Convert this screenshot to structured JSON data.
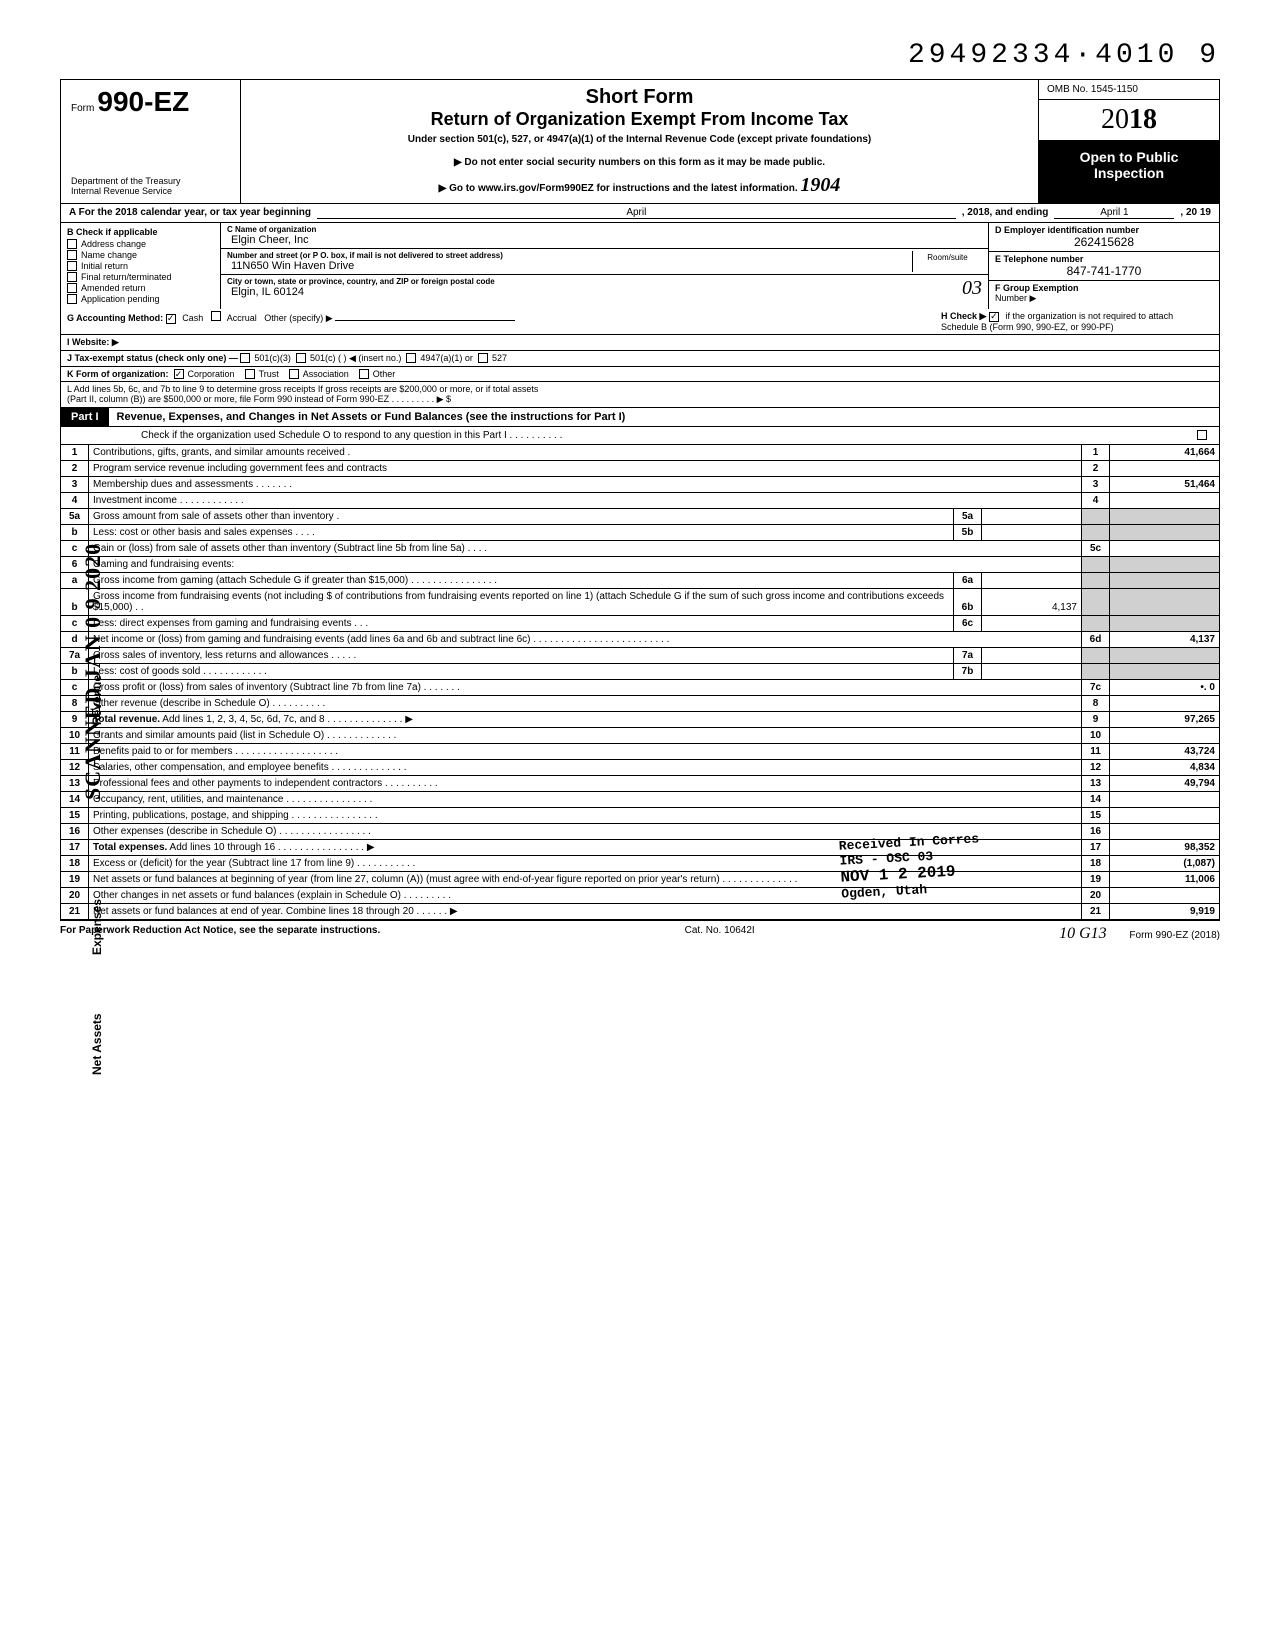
{
  "doc_id": "29492334·4010 9",
  "form": {
    "prefix": "Form",
    "number": "990-EZ",
    "title_line1": "Short Form",
    "title_line2": "Return of Organization Exempt From Income Tax",
    "subtitle": "Under section 501(c), 527, or 4947(a)(1) of the Internal Revenue Code (except private foundations)",
    "notice1": "Do not enter social security numbers on this form as it may be made public.",
    "notice2": "Go to www.irs.gov/Form990EZ for instructions and the latest information.",
    "dept1": "Department of the Treasury",
    "dept2": "Internal Revenue Service",
    "omb": "OMB No. 1545-1150",
    "year_prefix": "20",
    "year_bold": "18",
    "open1": "Open to Public",
    "open2": "Inspection",
    "hw_1904": "1904"
  },
  "row_a": {
    "label": "A For the 2018 calendar year, or tax year beginning",
    "begin": "April",
    "mid": ", 2018, and ending",
    "end": "April 1",
    "tail": ", 20   19"
  },
  "col_b": {
    "hdr": "B Check if applicable",
    "items": [
      "Address change",
      "Name change",
      "Initial return",
      "Final return/terminated",
      "Amended return",
      "Application pending"
    ]
  },
  "col_c": {
    "name_lbl": "C Name of organization",
    "name": "Elgin Cheer, Inc",
    "addr_lbl": "Number and street (or P O. box, if mail is not delivered to street address)",
    "addr": "11N650 Win Haven Drive",
    "room_lbl": "Room/suite",
    "city_lbl": "City or town, state or province, country, and ZIP or foreign postal code",
    "city": "Elgin, IL 60124",
    "hw_03": "03"
  },
  "col_d": {
    "lbl": "D Employer identification number",
    "val": "262415628"
  },
  "col_e": {
    "lbl": "E Telephone number",
    "val": "847-741-1770"
  },
  "col_f": {
    "lbl": "F Group Exemption",
    "lbl2": "Number ▶"
  },
  "row_g": {
    "lbl": "G Accounting Method:",
    "cash": "Cash",
    "accrual": "Accrual",
    "other": "Other (specify) ▶"
  },
  "row_h": {
    "lbl": "H Check ▶",
    "txt": "if the organization is not required to attach Schedule B (Form 990, 990-EZ, or 990-PF)"
  },
  "row_i": {
    "lbl": "I Website: ▶"
  },
  "row_j": {
    "lbl": "J Tax-exempt status (check only one) —",
    "o1": "501(c)(3)",
    "o2": "501(c) (      ) ◀ (insert no.)",
    "o3": "4947(a)(1) or",
    "o4": "527"
  },
  "row_k": {
    "lbl": "K Form of organization:",
    "o1": "Corporation",
    "o2": "Trust",
    "o3": "Association",
    "o4": "Other"
  },
  "row_l": {
    "l1": "L Add lines 5b, 6c, and 7b to line 9 to determine gross receipts  If gross receipts are $200,000 or more, or if total assets",
    "l2": "(Part II, column (B)) are $500,000 or more, file Form 990 instead of Form 990-EZ .   .   .   .   .   .   .   .   .   ▶   $"
  },
  "part1": {
    "lbl": "Part I",
    "title": "Revenue, Expenses, and Changes in Net Assets or Fund Balances (see the instructions for Part I)",
    "sub": "Check if the organization used Schedule O to respond to any question in this Part I .   .   .   .   .   .   .   .   .   ."
  },
  "side": {
    "revenue": "Revenue",
    "expenses": "Expenses",
    "netassets": "Net Assets",
    "scanned": "SCANNED JAN 0 9 2020"
  },
  "stamp": {
    "l1": "Received In Corres",
    "l2": "IRS - OSC 03",
    "l3": "NOV 1 2 2019",
    "l4": "Ogden, Utah"
  },
  "lines": [
    {
      "n": "1",
      "d": "Contributions, gifts, grants, and similar amounts received .",
      "rn": "1",
      "v": "41,664"
    },
    {
      "n": "2",
      "d": "Program service revenue including government fees and contracts",
      "rn": "2",
      "v": ""
    },
    {
      "n": "3",
      "d": "Membership dues and assessments .   .   .   .   .   .   .",
      "rn": "3",
      "v": "51,464"
    },
    {
      "n": "4",
      "d": "Investment income   .   .   .   .   .   .   .   .   .   .   .   .",
      "rn": "4",
      "v": ""
    },
    {
      "n": "5a",
      "d": "Gross amount from sale of assets other than inventory   .",
      "sn": "5a",
      "sv": ""
    },
    {
      "n": "b",
      "d": "Less: cost or other basis and sales expenses .   .   .   .",
      "sn": "5b",
      "sv": ""
    },
    {
      "n": "c",
      "d": "Gain or (loss) from sale of assets other than inventory (Subtract line 5b from line 5a) .   .   .   .",
      "rn": "5c",
      "v": ""
    },
    {
      "n": "6",
      "d": "Gaming and fundraising events:",
      "nobox": true
    },
    {
      "n": "a",
      "d": "Gross income from gaming (attach Schedule G if greater than $15,000) .   .   .   .   .   .   .   .   .   .   .   .   .   .   .   .",
      "sn": "6a",
      "sv": ""
    },
    {
      "n": "b",
      "d": "Gross income from fundraising events (not including  $                       of contributions from fundraising events reported on line 1) (attach Schedule G if the sum of such gross income and contributions exceeds $15,000) .   .",
      "sn": "6b",
      "sv": "4,137"
    },
    {
      "n": "c",
      "d": "Less: direct expenses from gaming and fundraising events   .   .   .",
      "sn": "6c",
      "sv": ""
    },
    {
      "n": "d",
      "d": "Net income or (loss) from gaming and fundraising events (add lines 6a and 6b and subtract line 6c)   .   .   .   .   .   .   .   .   .   .   .   .   .   .   .   .   .   .   .   .   .   .   .   .   .",
      "rn": "6d",
      "v": "4,137"
    },
    {
      "n": "7a",
      "d": "Gross sales of inventory, less returns and allowances  .   .   .   .   .",
      "sn": "7a",
      "sv": ""
    },
    {
      "n": "b",
      "d": "Less: cost of goods sold       .   .   .   .   .   .   .   .   .   .   .   .",
      "sn": "7b",
      "sv": ""
    },
    {
      "n": "c",
      "d": "Gross profit or (loss) from sales of inventory (Subtract line 7b from line 7a)  .   .   .   .   .   .   .",
      "rn": "7c",
      "v": "•.                    0"
    },
    {
      "n": "8",
      "d": "Other revenue (describe in Schedule O) .   .   .   .   .   .   .   .   .   .",
      "rn": "8",
      "v": ""
    },
    {
      "n": "9",
      "d": "Total revenue. Add lines 1, 2, 3, 4, 5c, 6d, 7c, and 8   .   .   .   .   .   .   .   .   .   .   .   .   .   . ▶",
      "rn": "9",
      "v": "97,265",
      "bold": true
    },
    {
      "n": "10",
      "d": "Grants and similar amounts paid (list in Schedule O)   .   .   .   .   .   .   .   .   .   .   .   .   .",
      "rn": "10",
      "v": ""
    },
    {
      "n": "11",
      "d": "Benefits paid to or for members   .   .   .   .   .   .   .   .   .   .   .   .   .   .   .   .   .   .   .",
      "rn": "11",
      "v": "43,724"
    },
    {
      "n": "12",
      "d": "Salaries, other compensation, and employee benefits .   .   .   .   .   .   .   .   .   .   .   .   .   .",
      "rn": "12",
      "v": "4,834"
    },
    {
      "n": "13",
      "d": "Professional fees and other payments to independent contractors .   .   .   .   .   .   .   .   .   .",
      "rn": "13",
      "v": "49,794"
    },
    {
      "n": "14",
      "d": "Occupancy, rent, utilities, and maintenance   .   .   .   .   .   .   .   .   .   .   .   .   .   .   .   .",
      "rn": "14",
      "v": ""
    },
    {
      "n": "15",
      "d": "Printing, publications, postage, and shipping .   .   .   .   .   .   .   .   .   .   .   .   .   .   .   .",
      "rn": "15",
      "v": ""
    },
    {
      "n": "16",
      "d": "Other expenses (describe in Schedule O)  .   .   .   .   .   .   .   .   .   .   .   .   .   .   .   .   .",
      "rn": "16",
      "v": ""
    },
    {
      "n": "17",
      "d": "Total expenses. Add lines 10 through 16  .   .   .   .   .   .   .   .   .   .   .   .   .   .   .   . ▶",
      "rn": "17",
      "v": "98,352",
      "bold": true
    },
    {
      "n": "18",
      "d": "Excess or (deficit) for the year (Subtract line 17 from line 9)   .   .   .   .   .   .   .   .   .   .   .",
      "rn": "18",
      "v": "(1,087)"
    },
    {
      "n": "19",
      "d": "Net assets or fund balances at beginning of year (from line 27, column (A)) (must agree with end-of-year figure reported on prior year's return)    .   .   .   .   .   .   .   .   .   .   .   .   .   .",
      "rn": "19",
      "v": "11,006"
    },
    {
      "n": "20",
      "d": "Other changes in net assets or fund balances (explain in Schedule O) .   .   .   .   .   .   .   .   .",
      "rn": "20",
      "v": ""
    },
    {
      "n": "21",
      "d": "Net assets or fund balances at end of year. Combine lines 18 through 20   .   .   .   .   .   . ▶",
      "rn": "21",
      "v": "9,919"
    }
  ],
  "footer": {
    "left": "For Paperwork Reduction Act Notice, see the separate instructions.",
    "mid": "Cat. No. 10642I",
    "right": "Form 990-EZ (2018)",
    "hw": "10   G13"
  }
}
